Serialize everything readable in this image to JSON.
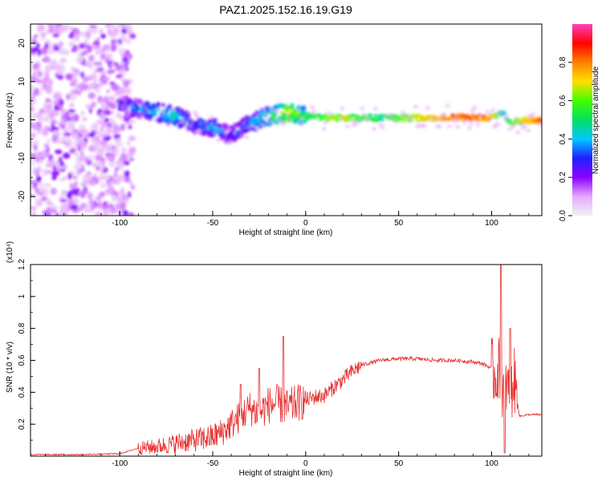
{
  "figure": {
    "title": "PAZ1.2025.152.16.19.G19"
  },
  "chart_data": [
    {
      "type": "heatmap",
      "title": "PAZ1.2025.152.16.19.G19",
      "xlabel": "Height of straight line (km)",
      "ylabel": "Frequency (Hz)",
      "xlim": [
        -148,
        127
      ],
      "ylim": [
        -25,
        25
      ],
      "xticks": [
        -100,
        -50,
        0,
        50,
        100
      ],
      "yticks": [
        -20,
        -10,
        0,
        10,
        20
      ],
      "colorbar": {
        "label": "Normalized spectral amplitude",
        "range": [
          0,
          1
        ],
        "ticks": [
          0.0,
          0.2,
          0.4,
          0.6,
          0.8
        ],
        "colors": [
          "#f2f2f2",
          "#e6a8ff",
          "#8c00ff",
          "#2020ff",
          "#00c8ff",
          "#00e060",
          "#40ff00",
          "#ffe000",
          "#ff8000",
          "#ff0000",
          "#ff40c0"
        ]
      },
      "ridge": {
        "x": [
          -100,
          -90,
          -80,
          -70,
          -60,
          -50,
          -40,
          -30,
          -20,
          -10,
          0,
          10,
          20,
          40,
          60,
          80,
          100,
          105,
          110,
          127
        ],
        "frequency": [
          4,
          3,
          2,
          1,
          -1,
          -2,
          -4,
          -1,
          1,
          2,
          1,
          0.5,
          0.5,
          0.5,
          0.5,
          0.8,
          0.5,
          2,
          -0.5,
          0
        ],
        "amplitude": [
          0.3,
          0.35,
          0.4,
          0.45,
          0.3,
          0.4,
          0.3,
          0.35,
          0.5,
          0.65,
          0.55,
          0.6,
          0.7,
          0.5,
          0.7,
          0.85,
          0.8,
          0.45,
          0.6,
          0.9
        ]
      }
    },
    {
      "type": "line",
      "xlabel": "Height of straight line (km)",
      "ylabel": "SNR (10 * v/v)",
      "scale_label": "(x10⁴)",
      "xlim": [
        -148,
        127
      ],
      "ylim": [
        0,
        1.2
      ],
      "xticks": [
        -100,
        -50,
        0,
        50,
        100
      ],
      "yticks": [
        0.2,
        0.4,
        0.6,
        0.8,
        1.0,
        1.2
      ],
      "line_color": "#e83030",
      "series": [
        {
          "x": [
            -148,
            -120,
            -100,
            -90,
            -80,
            -70,
            -60,
            -50,
            -45,
            -40,
            -35,
            -30,
            -25,
            -20,
            -15,
            -10,
            -5,
            0,
            5,
            10,
            15,
            20,
            25,
            30,
            40,
            50,
            60,
            70,
            80,
            90,
            95,
            100,
            102,
            104,
            106,
            108,
            110,
            112,
            115,
            120,
            127
          ],
          "y": [
            0.01,
            0.01,
            0.015,
            0.05,
            0.06,
            0.08,
            0.1,
            0.12,
            0.15,
            0.2,
            0.25,
            0.3,
            0.27,
            0.32,
            0.33,
            0.3,
            0.33,
            0.35,
            0.37,
            0.38,
            0.43,
            0.48,
            0.53,
            0.57,
            0.6,
            0.61,
            0.61,
            0.6,
            0.6,
            0.59,
            0.58,
            0.55,
            0.5,
            0.55,
            0.4,
            0.45,
            0.35,
            0.5,
            0.25,
            0.26,
            0.26
          ]
        }
      ],
      "spikes": [
        {
          "x": -35,
          "y": 0.45
        },
        {
          "x": -25,
          "y": 0.55
        },
        {
          "x": -12,
          "y": 0.75
        },
        {
          "x": 105,
          "y": 1.2
        },
        {
          "x": 107,
          "y": 0.02
        },
        {
          "x": 110,
          "y": 0.8
        }
      ]
    }
  ]
}
